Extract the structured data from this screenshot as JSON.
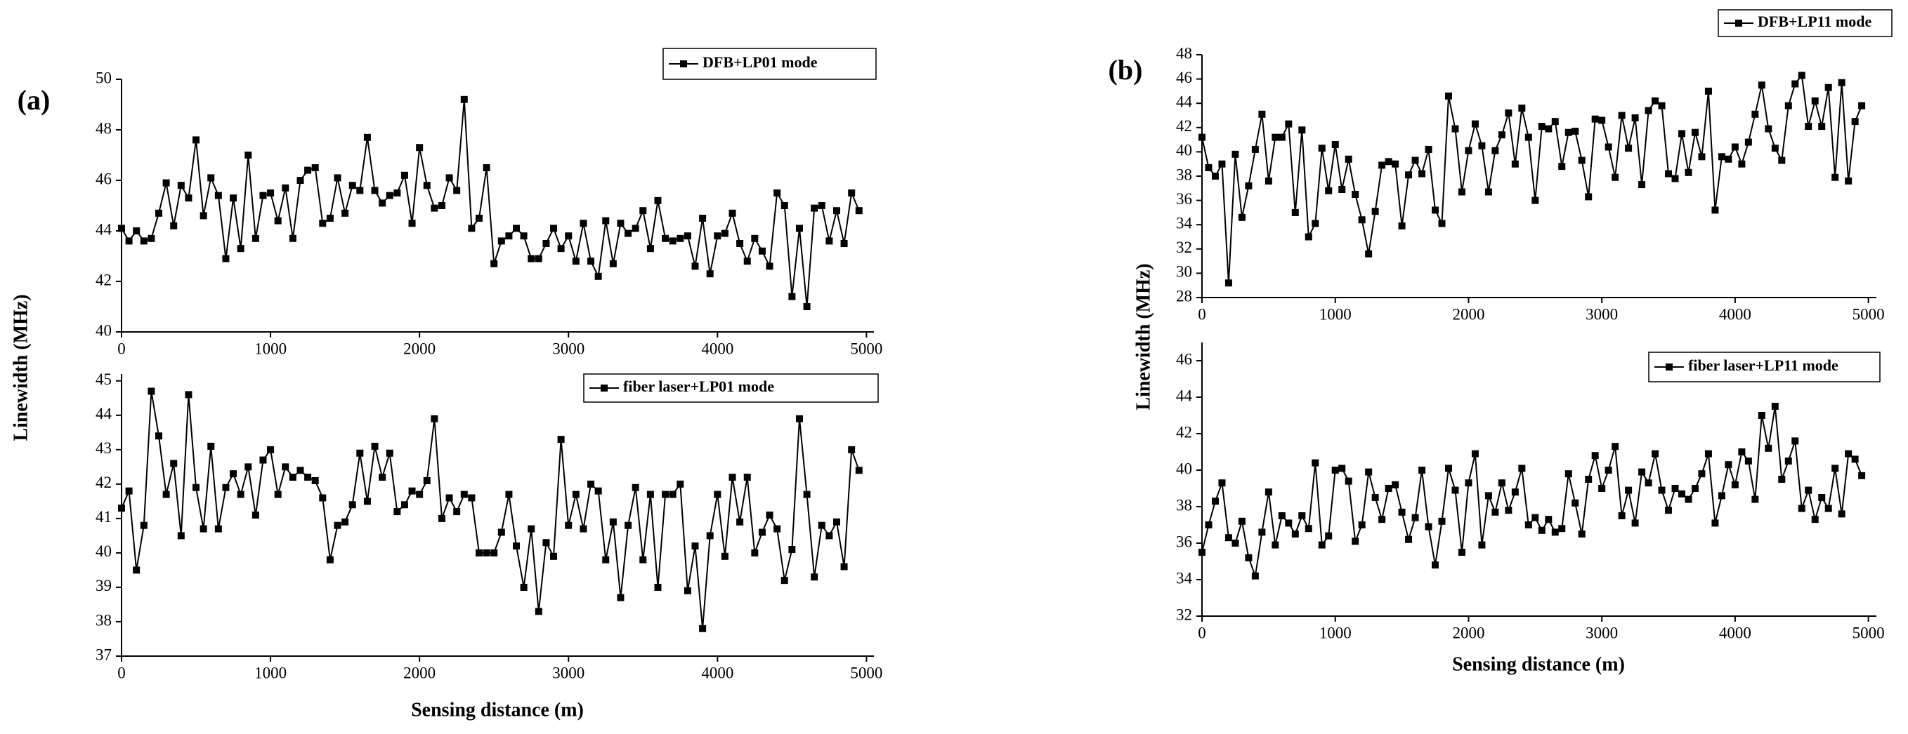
{
  "panels": [
    {
      "label": "(a)",
      "xlabel": "Sensing distance (m)",
      "ylabel": "Linewidth (MHz)"
    },
    {
      "label": "(b)",
      "xlabel": "Sensing distance (m)",
      "ylabel": "Linewidth (MHz)"
    }
  ],
  "chart_data": [
    {
      "type": "line",
      "marker": "square",
      "legend": "upper right",
      "x": [
        0,
        50,
        100,
        150,
        200,
        250,
        300,
        350,
        400,
        450,
        500,
        550,
        600,
        650,
        700,
        750,
        800,
        850,
        900,
        950,
        1000,
        1050,
        1100,
        1150,
        1200,
        1250,
        1300,
        1350,
        1400,
        1450,
        1500,
        1550,
        1600,
        1650,
        1700,
        1750,
        1800,
        1850,
        1900,
        1950,
        2000,
        2050,
        2100,
        2150,
        2200,
        2250,
        2300,
        2350,
        2400,
        2450,
        2500,
        2550,
        2600,
        2650,
        2700,
        2750,
        2800,
        2850,
        2900,
        2950,
        3000,
        3050,
        3100,
        3150,
        3200,
        3250,
        3300,
        3350,
        3400,
        3450,
        3500,
        3550,
        3600,
        3650,
        3700,
        3750,
        3800,
        3850,
        3900,
        3950,
        4000,
        4050,
        4100,
        4150,
        4200,
        4250,
        4300,
        4350,
        4400,
        4450,
        4500,
        4550,
        4600,
        4650,
        4700,
        4750,
        4800,
        4850,
        4900,
        4950
      ],
      "series": [
        {
          "name": "DFB+LP01 mode",
          "color": "#000000",
          "values": [
            44.1,
            43.6,
            44.0,
            43.6,
            43.7,
            44.7,
            45.9,
            44.2,
            45.8,
            45.3,
            47.6,
            44.6,
            46.1,
            45.4,
            42.9,
            45.3,
            43.3,
            47.0,
            43.7,
            45.4,
            45.5,
            44.4,
            45.7,
            43.7,
            46.0,
            46.4,
            46.5,
            44.3,
            44.5,
            46.1,
            44.7,
            45.8,
            45.6,
            47.7,
            45.6,
            45.1,
            45.4,
            45.5,
            46.2,
            44.3,
            47.3,
            45.8,
            44.9,
            45.0,
            46.1,
            45.6,
            49.2,
            44.1,
            44.5,
            46.5,
            42.7,
            43.6,
            43.8,
            44.1,
            43.8,
            42.9,
            42.9,
            43.5,
            44.1,
            43.3,
            43.8,
            42.8,
            44.3,
            42.8,
            42.2,
            44.4,
            42.7,
            44.3,
            43.9,
            44.1,
            44.8,
            43.3,
            45.2,
            43.7,
            43.6,
            43.7,
            43.8,
            42.6,
            44.5,
            42.3,
            43.8,
            43.9,
            44.7,
            43.5,
            42.8,
            43.7,
            43.2,
            42.6,
            45.5,
            45.0,
            41.4,
            44.1,
            41.0,
            44.9,
            45.0,
            43.6,
            44.8,
            43.5,
            45.5,
            44.8
          ]
        }
      ],
      "xlim": [
        0,
        5050
      ],
      "ylim": [
        40,
        50
      ],
      "xticks": [
        0,
        1000,
        2000,
        3000,
        4000,
        5000
      ],
      "yticks": [
        40,
        42,
        44,
        46,
        48,
        50
      ]
    },
    {
      "type": "line",
      "marker": "square",
      "legend": "upper right",
      "x": [
        0,
        50,
        100,
        150,
        200,
        250,
        300,
        350,
        400,
        450,
        500,
        550,
        600,
        650,
        700,
        750,
        800,
        850,
        900,
        950,
        1000,
        1050,
        1100,
        1150,
        1200,
        1250,
        1300,
        1350,
        1400,
        1450,
        1500,
        1550,
        1600,
        1650,
        1700,
        1750,
        1800,
        1850,
        1900,
        1950,
        2000,
        2050,
        2100,
        2150,
        2200,
        2250,
        2300,
        2350,
        2400,
        2450,
        2500,
        2550,
        2600,
        2650,
        2700,
        2750,
        2800,
        2850,
        2900,
        2950,
        3000,
        3050,
        3100,
        3150,
        3200,
        3250,
        3300,
        3350,
        3400,
        3450,
        3500,
        3550,
        3600,
        3650,
        3700,
        3750,
        3800,
        3850,
        3900,
        3950,
        4000,
        4050,
        4100,
        4150,
        4200,
        4250,
        4300,
        4350,
        4400,
        4450,
        4500,
        4550,
        4600,
        4650,
        4700,
        4750,
        4800,
        4850,
        4900,
        4950
      ],
      "series": [
        {
          "name": "fiber laser+LP01 mode",
          "color": "#000000",
          "values": [
            41.3,
            41.8,
            39.5,
            40.8,
            44.7,
            43.4,
            41.7,
            42.6,
            40.5,
            44.6,
            41.9,
            40.7,
            43.1,
            40.7,
            41.9,
            42.3,
            41.7,
            42.5,
            41.1,
            42.7,
            43.0,
            41.7,
            42.5,
            42.2,
            42.4,
            42.2,
            42.1,
            41.6,
            39.8,
            40.8,
            40.9,
            41.4,
            42.9,
            41.5,
            43.1,
            42.2,
            42.9,
            41.2,
            41.4,
            41.8,
            41.7,
            42.1,
            43.9,
            41.0,
            41.6,
            41.2,
            41.7,
            41.6,
            40.0,
            40.0,
            40.0,
            40.6,
            41.7,
            40.2,
            39.0,
            40.7,
            38.3,
            40.3,
            39.9,
            43.3,
            40.8,
            41.7,
            40.7,
            42.0,
            41.8,
            39.8,
            40.9,
            38.7,
            40.8,
            41.9,
            39.8,
            41.7,
            39.0,
            41.7,
            41.7,
            42.0,
            38.9,
            40.2,
            37.8,
            40.5,
            41.7,
            39.9,
            42.2,
            40.9,
            42.2,
            40.0,
            40.6,
            41.1,
            40.7,
            39.2,
            40.1,
            43.9,
            41.7,
            39.3,
            40.8,
            40.5,
            40.9,
            39.6,
            43.0,
            42.4
          ]
        }
      ],
      "xlim": [
        0,
        5050
      ],
      "ylim": [
        37,
        45.2
      ],
      "xticks": [
        0,
        1000,
        2000,
        3000,
        4000,
        5000
      ],
      "yticks": [
        37,
        38,
        39,
        40,
        41,
        42,
        43,
        44,
        45
      ]
    },
    {
      "type": "line",
      "marker": "square",
      "legend": "upper right",
      "x": [
        0,
        50,
        100,
        150,
        200,
        250,
        300,
        350,
        400,
        450,
        500,
        550,
        600,
        650,
        700,
        750,
        800,
        850,
        900,
        950,
        1000,
        1050,
        1100,
        1150,
        1200,
        1250,
        1300,
        1350,
        1400,
        1450,
        1500,
        1550,
        1600,
        1650,
        1700,
        1750,
        1800,
        1850,
        1900,
        1950,
        2000,
        2050,
        2100,
        2150,
        2200,
        2250,
        2300,
        2350,
        2400,
        2450,
        2500,
        2550,
        2600,
        2650,
        2700,
        2750,
        2800,
        2850,
        2900,
        2950,
        3000,
        3050,
        3100,
        3150,
        3200,
        3250,
        3300,
        3350,
        3400,
        3450,
        3500,
        3550,
        3600,
        3650,
        3700,
        3750,
        3800,
        3850,
        3900,
        3950,
        4000,
        4050,
        4100,
        4150,
        4200,
        4250,
        4300,
        4350,
        4400,
        4450,
        4500,
        4550,
        4600,
        4650,
        4700,
        4750,
        4800,
        4850,
        4900,
        4950
      ],
      "series": [
        {
          "name": "DFB+LP11 mode",
          "color": "#000000",
          "values": [
            41.2,
            38.7,
            38.0,
            39.0,
            29.2,
            39.8,
            34.6,
            37.2,
            40.2,
            43.1,
            37.6,
            41.2,
            41.2,
            42.3,
            35.0,
            41.8,
            33.0,
            34.1,
            40.3,
            36.8,
            40.6,
            36.9,
            39.4,
            36.5,
            34.4,
            31.6,
            35.1,
            38.9,
            39.2,
            39.0,
            33.9,
            38.1,
            39.3,
            38.2,
            40.2,
            35.2,
            34.1,
            44.6,
            41.9,
            36.7,
            40.1,
            42.3,
            40.5,
            36.7,
            40.1,
            41.4,
            43.2,
            39.0,
            43.6,
            41.2,
            36.0,
            42.1,
            41.9,
            42.5,
            38.8,
            41.6,
            41.7,
            39.3,
            36.3,
            42.7,
            42.6,
            40.4,
            37.9,
            43.0,
            40.3,
            42.8,
            37.3,
            43.4,
            44.2,
            43.8,
            38.2,
            37.8,
            41.5,
            38.3,
            41.6,
            39.6,
            45.0,
            35.2,
            39.6,
            39.4,
            40.4,
            39.0,
            40.8,
            43.1,
            45.5,
            41.9,
            40.3,
            39.3,
            43.8,
            45.6,
            46.3,
            42.1,
            44.2,
            42.1,
            45.3,
            37.9,
            45.7,
            37.6,
            42.5,
            43.8
          ]
        }
      ],
      "xlim": [
        0,
        5060
      ],
      "ylim": [
        28,
        48
      ],
      "xticks": [
        0,
        1000,
        2000,
        3000,
        4000,
        5000
      ],
      "yticks": [
        28,
        30,
        32,
        34,
        36,
        38,
        40,
        42,
        44,
        46,
        48
      ]
    },
    {
      "type": "line",
      "marker": "square",
      "legend": "upper right",
      "x": [
        0,
        50,
        100,
        150,
        200,
        250,
        300,
        350,
        400,
        450,
        500,
        550,
        600,
        650,
        700,
        750,
        800,
        850,
        900,
        950,
        1000,
        1050,
        1100,
        1150,
        1200,
        1250,
        1300,
        1350,
        1400,
        1450,
        1500,
        1550,
        1600,
        1650,
        1700,
        1750,
        1800,
        1850,
        1900,
        1950,
        2000,
        2050,
        2100,
        2150,
        2200,
        2250,
        2300,
        2350,
        2400,
        2450,
        2500,
        2550,
        2600,
        2650,
        2700,
        2750,
        2800,
        2850,
        2900,
        2950,
        3000,
        3050,
        3100,
        3150,
        3200,
        3250,
        3300,
        3350,
        3400,
        3450,
        3500,
        3550,
        3600,
        3650,
        3700,
        3750,
        3800,
        3850,
        3900,
        3950,
        4000,
        4050,
        4100,
        4150,
        4200,
        4250,
        4300,
        4350,
        4400,
        4450,
        4500,
        4550,
        4600,
        4650,
        4700,
        4750,
        4800,
        4850,
        4900,
        4950
      ],
      "series": [
        {
          "name": "fiber laser+LP11 mode",
          "color": "#000000",
          "values": [
            35.5,
            37.0,
            38.3,
            39.3,
            36.3,
            36.0,
            37.2,
            35.2,
            34.2,
            36.6,
            38.8,
            35.9,
            37.5,
            37.1,
            36.5,
            37.5,
            36.8,
            40.4,
            35.9,
            36.4,
            40.0,
            40.1,
            39.4,
            36.1,
            37.0,
            39.9,
            38.5,
            37.3,
            39.0,
            39.2,
            37.7,
            36.2,
            37.4,
            40.0,
            36.9,
            34.8,
            37.2,
            40.1,
            38.9,
            35.5,
            39.3,
            40.9,
            35.9,
            38.6,
            37.7,
            39.3,
            37.8,
            38.8,
            40.1,
            37.0,
            37.4,
            36.7,
            37.3,
            36.6,
            36.8,
            39.8,
            38.2,
            36.5,
            39.5,
            40.8,
            39.0,
            40.0,
            41.3,
            37.5,
            38.9,
            37.1,
            39.9,
            39.3,
            40.9,
            38.9,
            37.8,
            39.0,
            38.7,
            38.4,
            39.0,
            39.8,
            40.9,
            37.1,
            38.6,
            40.3,
            39.2,
            41.0,
            40.5,
            38.4,
            43.0,
            41.2,
            43.5,
            39.5,
            40.5,
            41.6,
            37.9,
            38.9,
            37.3,
            38.5,
            37.9,
            40.1,
            37.6,
            40.9,
            40.6,
            39.7
          ]
        }
      ],
      "xlim": [
        0,
        5060
      ],
      "ylim": [
        32,
        47
      ],
      "xticks": [
        0,
        1000,
        2000,
        3000,
        4000,
        5000
      ],
      "yticks": [
        32,
        34,
        36,
        38,
        40,
        42,
        44,
        46
      ]
    }
  ]
}
